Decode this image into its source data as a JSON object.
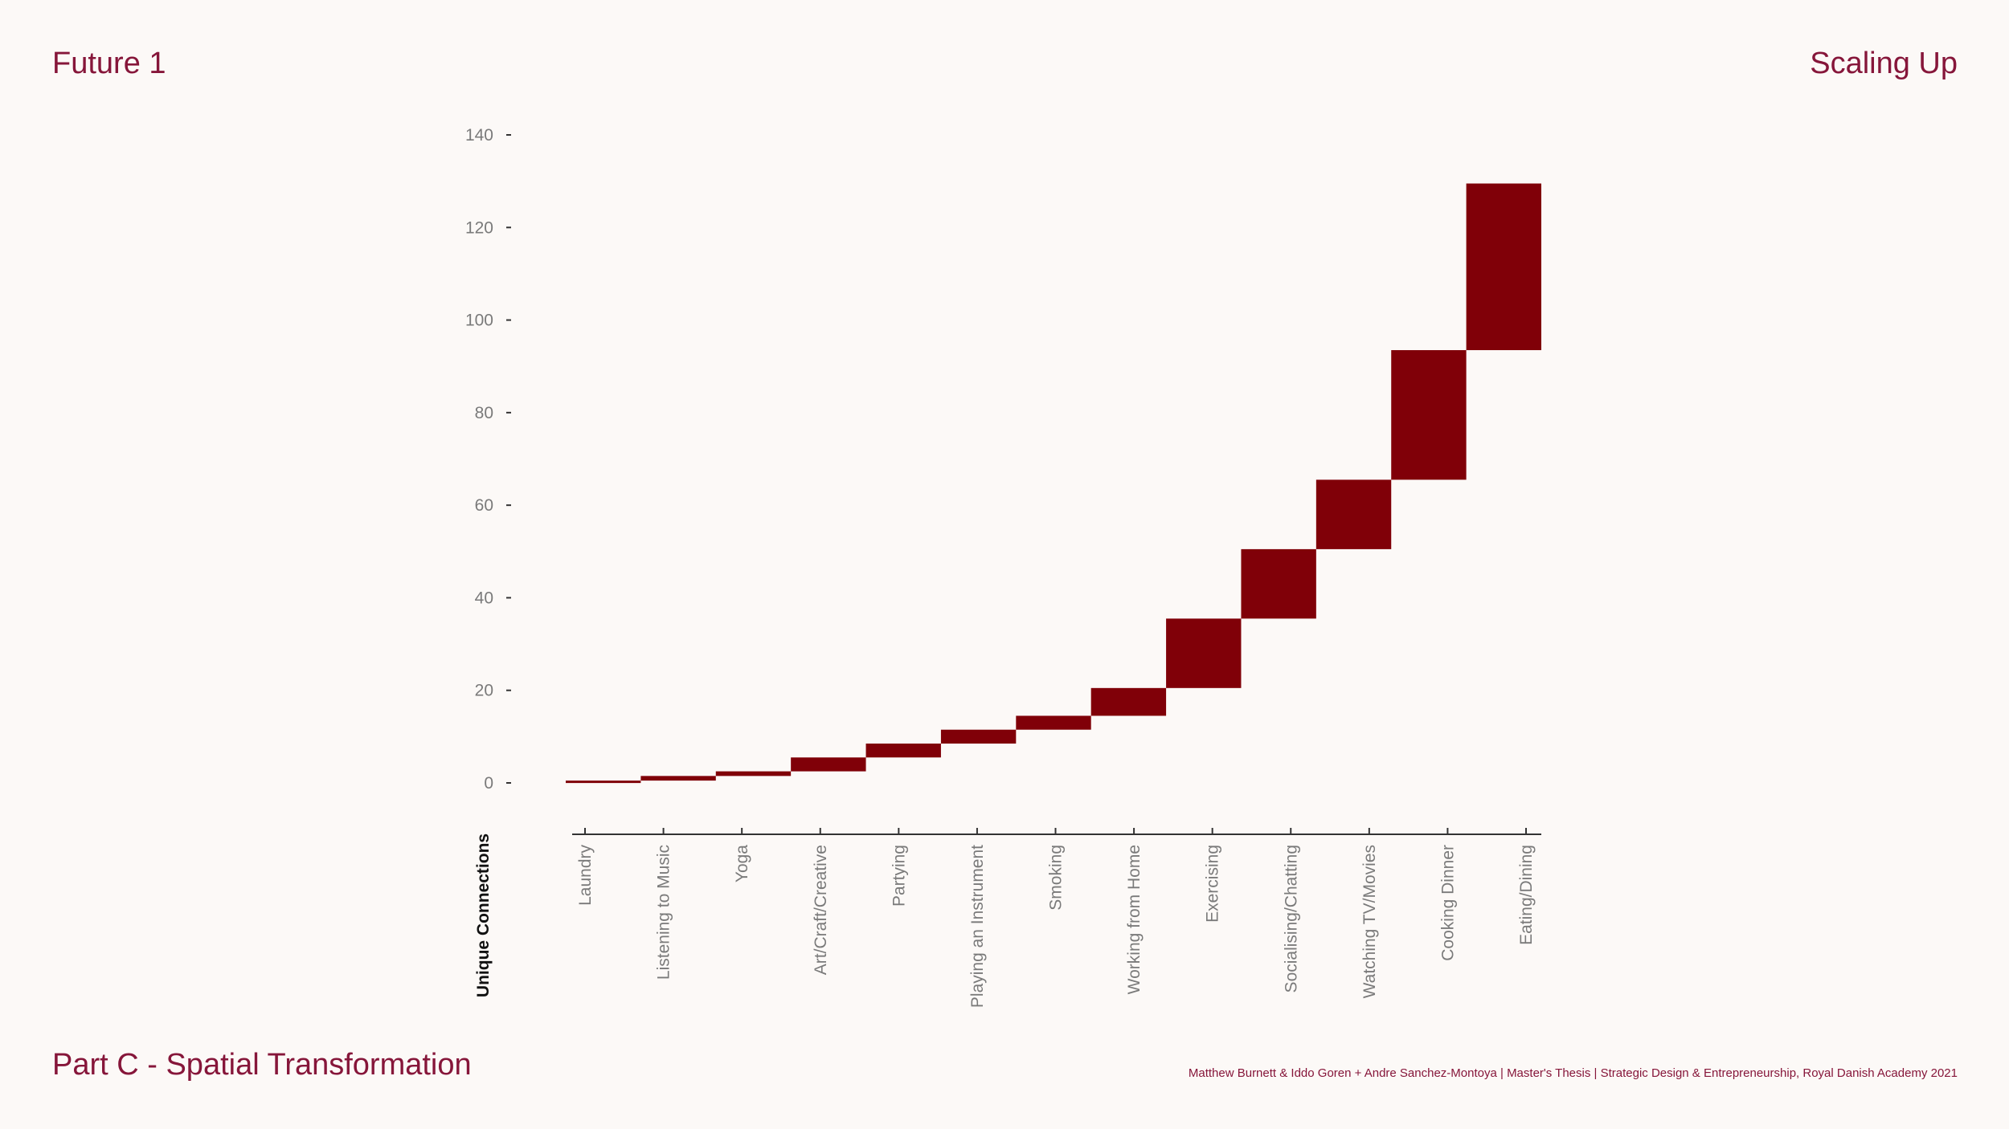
{
  "header": {
    "left_title": "Future 1",
    "right_title": "Scaling Up"
  },
  "footer": {
    "section_title": "Part C - Spatial Transformation",
    "credits": "Matthew Burnett & Iddo Goren +  Andre Sanchez-Montoya | Master's Thesis | Strategic Design & Entrepreneurship, Royal Danish Academy 2021"
  },
  "colors": {
    "bar": "#800008",
    "title": "#86163a",
    "background": "#fcf9f7"
  },
  "chart_data": {
    "type": "waterfall",
    "title": "",
    "ylabel": "Unique Connections",
    "xlabel": "",
    "ylim": [
      0,
      140
    ],
    "yticks": [
      0,
      20,
      40,
      60,
      80,
      100,
      120,
      140
    ],
    "categories": [
      "Laundry",
      "Listening to Music",
      "Yoga",
      "Art/Craft/Creative",
      "Partying",
      "Playing an Instrument",
      "Smoking",
      "Working from Home",
      "Exercising",
      "Socialising/Chatting",
      "Watching TV/Movies",
      "Cooking Dinner",
      "Eating/Dining"
    ],
    "ranges": [
      [
        0,
        0.5
      ],
      [
        0.5,
        1.5
      ],
      [
        1.5,
        2.5
      ],
      [
        2.5,
        5.5
      ],
      [
        5.5,
        8.5
      ],
      [
        8.5,
        11.5
      ],
      [
        11.5,
        14.5
      ],
      [
        14.5,
        20.5
      ],
      [
        20.5,
        35.5
      ],
      [
        35.5,
        50.5
      ],
      [
        50.5,
        65.5
      ],
      [
        65.5,
        93.5
      ],
      [
        93.5,
        129.5
      ]
    ]
  }
}
